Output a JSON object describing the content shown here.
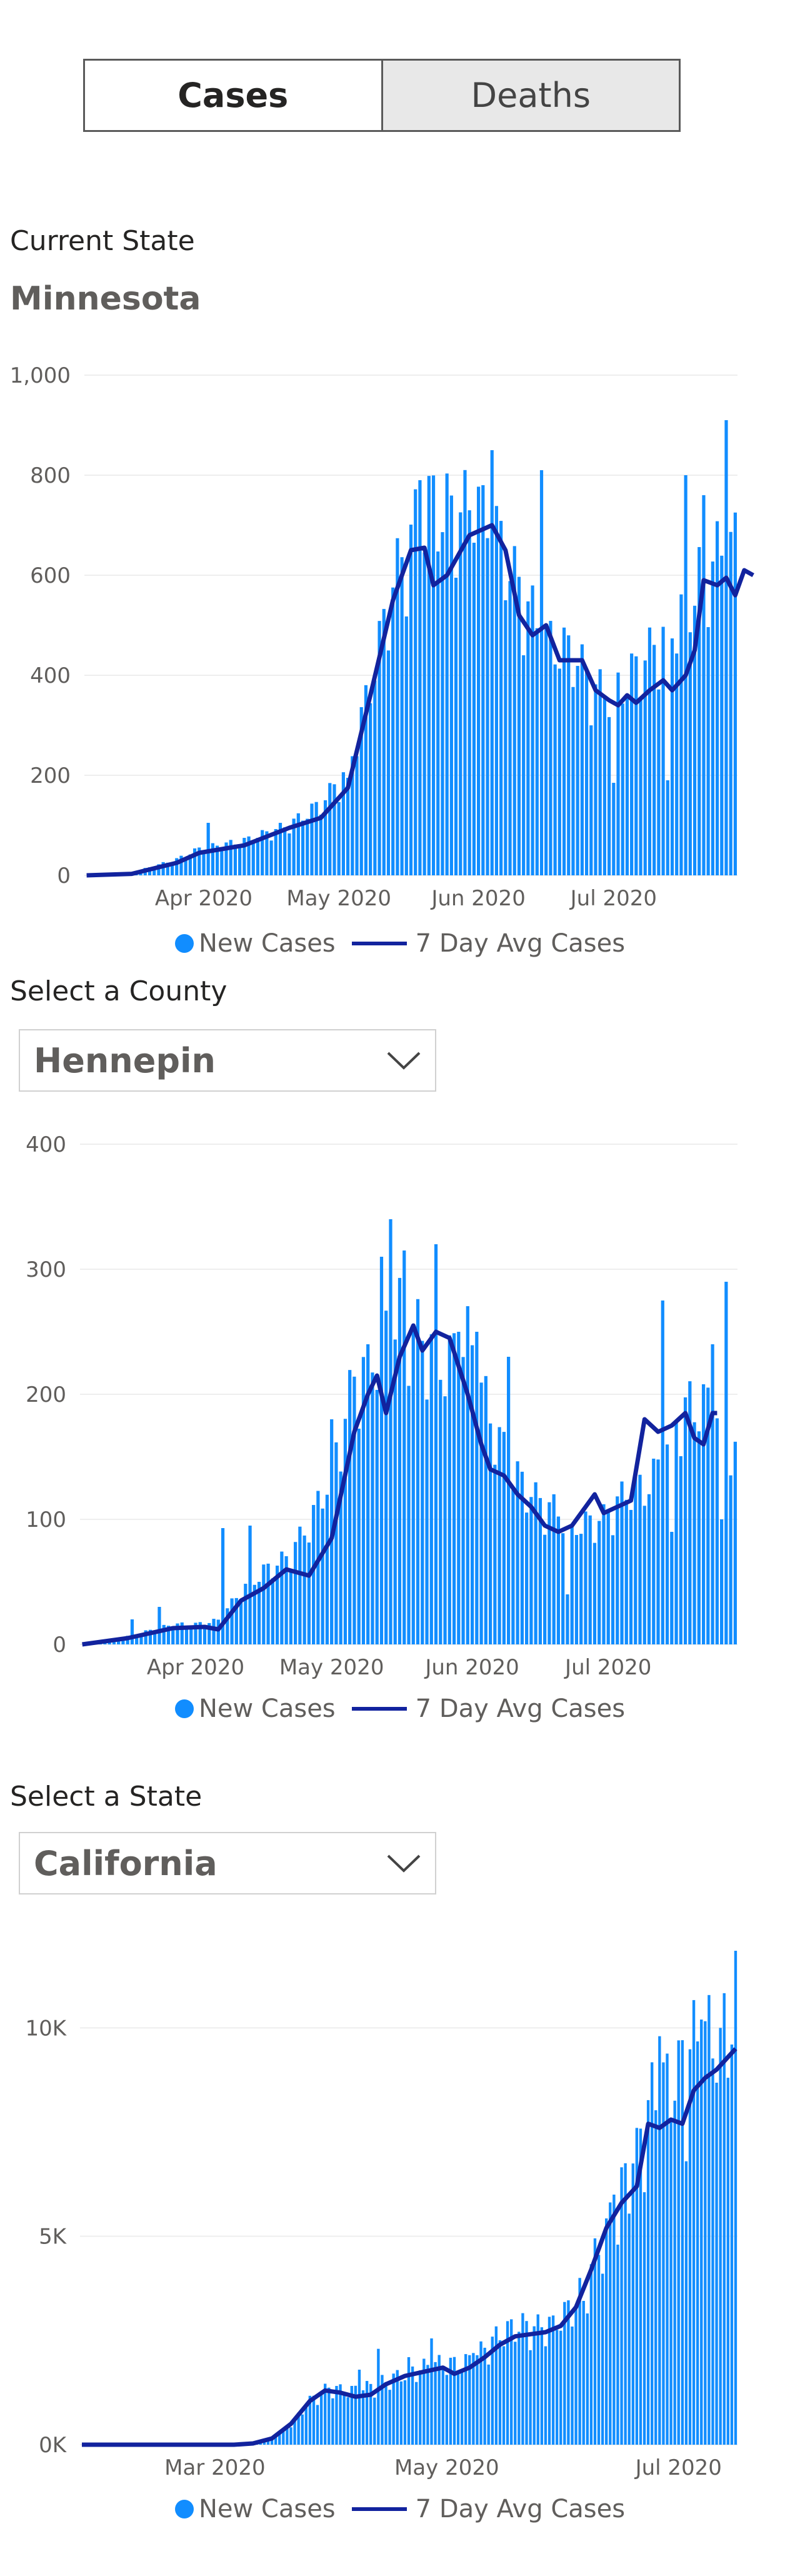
{
  "tabs": {
    "cases": "Cases",
    "deaths": "Deaths",
    "active": "cases"
  },
  "sections": {
    "current_state_label": "Current State",
    "current_state_value": "Minnesota",
    "county_label": "Select a County",
    "county_value": "Hennepin",
    "state_label": "Select a State",
    "state_value": "California"
  },
  "legend": {
    "new_cases": "New Cases",
    "avg": "7 Day Avg Cases"
  },
  "colors": {
    "bar": "#118dff",
    "avg_line": "#12239e",
    "grid": "#eeeeee"
  },
  "icons": {
    "dropdown": "chevron-down-icon"
  },
  "chart_data": [
    {
      "type": "bar",
      "region": "Minnesota",
      "ylim": [
        0,
        1000
      ],
      "y_ticks": [
        {
          "value": 0,
          "label": "0"
        },
        {
          "value": 200,
          "label": "200"
        },
        {
          "value": 400,
          "label": "400"
        },
        {
          "value": 600,
          "label": "600"
        },
        {
          "value": 800,
          "label": "800"
        },
        {
          "value": 1000,
          "label": "1,000"
        }
      ],
      "x_ticks": [
        "Apr 2020",
        "May 2020",
        "Jun 2020",
        "Jul 2020"
      ],
      "start_date": "2020-03-06",
      "tick_dates": [
        "2020-04-01",
        "2020-05-01",
        "2020-06-01",
        "2020-07-01"
      ],
      "series": [
        {
          "name": "New Cases",
          "kind": "bar",
          "anchors": [
            [
              0,
              0
            ],
            [
              10,
              5
            ],
            [
              20,
              30
            ],
            [
              25,
              50
            ],
            [
              35,
              65
            ],
            [
              45,
              95
            ],
            [
              52,
              135
            ],
            [
              58,
              200
            ],
            [
              63,
              360
            ],
            [
              68,
              550
            ],
            [
              75,
              700
            ],
            [
              82,
              680
            ],
            [
              88,
              700
            ],
            [
              95,
              560
            ],
            [
              102,
              440
            ],
            [
              108,
              420
            ],
            [
              113,
              350
            ],
            [
              118,
              350
            ],
            [
              123,
              400
            ],
            [
              128,
              450
            ],
            [
              133,
              500
            ],
            [
              136,
              560
            ],
            [
              140,
              600
            ],
            [
              144,
              620
            ]
          ],
          "spikes": {
            "27": 105,
            "58": 195,
            "74": 790,
            "82": 595,
            "86": 665,
            "88": 780,
            "90": 850,
            "101": 810,
            "117": 185,
            "133": 800,
            "137": 760,
            "142": 910
          },
          "dips": {
            "129": 190,
            "145": 350
          }
        },
        {
          "name": "7 Day Avg Cases",
          "kind": "line",
          "points": [
            [
              0,
              0
            ],
            [
              10,
              3
            ],
            [
              20,
              25
            ],
            [
              25,
              45
            ],
            [
              35,
              60
            ],
            [
              45,
              95
            ],
            [
              52,
              115
            ],
            [
              58,
              175
            ],
            [
              63,
              360
            ],
            [
              68,
              550
            ],
            [
              72,
              650
            ],
            [
              75,
              655
            ],
            [
              77,
              580
            ],
            [
              80,
              600
            ],
            [
              85,
              680
            ],
            [
              90,
              700
            ],
            [
              93,
              650
            ],
            [
              96,
              520
            ],
            [
              99,
              480
            ],
            [
              102,
              500
            ],
            [
              105,
              430
            ],
            [
              110,
              430
            ],
            [
              113,
              370
            ],
            [
              116,
              350
            ],
            [
              118,
              340
            ],
            [
              120,
              360
            ],
            [
              122,
              345
            ],
            [
              125,
              370
            ],
            [
              128,
              390
            ],
            [
              130,
              370
            ],
            [
              133,
              400
            ],
            [
              135,
              450
            ],
            [
              137,
              590
            ],
            [
              140,
              580
            ],
            [
              142,
              595
            ],
            [
              144,
              560
            ],
            [
              146,
              610
            ],
            [
              148,
              600
            ]
          ]
        }
      ]
    },
    {
      "type": "bar",
      "region": "Hennepin",
      "ylim": [
        0,
        400
      ],
      "y_ticks": [
        {
          "value": 0,
          "label": "0"
        },
        {
          "value": 100,
          "label": "100"
        },
        {
          "value": 200,
          "label": "200"
        },
        {
          "value": 300,
          "label": "300"
        },
        {
          "value": 400,
          "label": "400"
        }
      ],
      "x_ticks": [
        "Apr 2020",
        "May 2020",
        "Jun 2020",
        "Jul 2020"
      ],
      "start_date": "2020-03-07",
      "tick_dates": [
        "2020-04-01",
        "2020-05-01",
        "2020-06-01",
        "2020-07-01"
      ],
      "series": [
        {
          "name": "New Cases",
          "kind": "bar",
          "anchors": [
            [
              0,
              0
            ],
            [
              10,
              6
            ],
            [
              20,
              15
            ],
            [
              25,
              15
            ],
            [
              30,
              18
            ],
            [
              35,
              40
            ],
            [
              40,
              55
            ],
            [
              45,
              65
            ],
            [
              50,
              90
            ],
            [
              55,
              130
            ],
            [
              60,
              200
            ],
            [
              65,
              220
            ],
            [
              70,
              250
            ],
            [
              75,
              230
            ],
            [
              80,
              210
            ],
            [
              85,
              230
            ],
            [
              90,
              170
            ],
            [
              95,
              130
            ],
            [
              100,
              110
            ],
            [
              105,
              100
            ],
            [
              110,
              90
            ],
            [
              115,
              95
            ],
            [
              120,
              115
            ],
            [
              125,
              120
            ],
            [
              128,
              140
            ],
            [
              131,
              170
            ],
            [
              134,
              180
            ],
            [
              138,
              180
            ],
            [
              142,
              175
            ],
            [
              144,
              150
            ]
          ],
          "spikes": {
            "11": 20,
            "17": 30,
            "31": 93,
            "37": 95,
            "55": 180,
            "63": 240,
            "66": 310,
            "68": 340,
            "71": 315,
            "78": 320,
            "83": 250,
            "87": 250,
            "94": 230,
            "108": 95,
            "128": 275,
            "139": 240,
            "142": 290
          },
          "dips": {
            "107": 40,
            "130": 90,
            "141": 100
          }
        },
        {
          "name": "7 Day Avg Cases",
          "kind": "line",
          "points": [
            [
              0,
              0
            ],
            [
              10,
              5
            ],
            [
              20,
              13
            ],
            [
              27,
              14
            ],
            [
              30,
              12
            ],
            [
              35,
              35
            ],
            [
              40,
              45
            ],
            [
              45,
              60
            ],
            [
              50,
              55
            ],
            [
              55,
              85
            ],
            [
              60,
              170
            ],
            [
              63,
              200
            ],
            [
              65,
              215
            ],
            [
              67,
              185
            ],
            [
              70,
              230
            ],
            [
              73,
              255
            ],
            [
              75,
              235
            ],
            [
              78,
              250
            ],
            [
              81,
              245
            ],
            [
              85,
              200
            ],
            [
              88,
              160
            ],
            [
              90,
              140
            ],
            [
              93,
              135
            ],
            [
              96,
              120
            ],
            [
              99,
              110
            ],
            [
              102,
              95
            ],
            [
              105,
              90
            ],
            [
              108,
              95
            ],
            [
              111,
              110
            ],
            [
              113,
              120
            ],
            [
              115,
              105
            ],
            [
              118,
              110
            ],
            [
              121,
              115
            ],
            [
              124,
              180
            ],
            [
              127,
              170
            ],
            [
              130,
              175
            ],
            [
              133,
              185
            ],
            [
              135,
              165
            ],
            [
              137,
              160
            ],
            [
              139,
              185
            ],
            [
              140,
              185
            ]
          ]
        }
      ]
    },
    {
      "type": "bar",
      "region": "California",
      "ylim": [
        0,
        12000
      ],
      "y_ticks": [
        {
          "value": 0,
          "label": "0K"
        },
        {
          "value": 5000,
          "label": "5K"
        },
        {
          "value": 10000,
          "label": "10K"
        }
      ],
      "x_ticks": [
        "Mar 2020",
        "May 2020",
        "Jul 2020"
      ],
      "start_date": "2020-01-26",
      "tick_dates": [
        "2020-03-01",
        "2020-05-01",
        "2020-07-01"
      ],
      "series": [
        {
          "name": "New Cases",
          "kind": "bar",
          "anchors": [
            [
              0,
              0
            ],
            [
              40,
              0
            ],
            [
              45,
              30
            ],
            [
              50,
              150
            ],
            [
              55,
              450
            ],
            [
              60,
              1000
            ],
            [
              65,
              1300
            ],
            [
              70,
              1200
            ],
            [
              75,
              1300
            ],
            [
              80,
              1450
            ],
            [
              85,
              1600
            ],
            [
              90,
              1750
            ],
            [
              95,
              1850
            ],
            [
              100,
              1800
            ],
            [
              105,
              2100
            ],
            [
              110,
              2500
            ],
            [
              115,
              2700
            ],
            [
              120,
              2650
            ],
            [
              125,
              2800
            ],
            [
              130,
              3200
            ],
            [
              135,
              4200
            ],
            [
              140,
              5200
            ],
            [
              145,
              6500
            ],
            [
              150,
              7800
            ],
            [
              155,
              8200
            ],
            [
              160,
              9000
            ],
            [
              165,
              9200
            ],
            [
              170,
              9500
            ],
            [
              172,
              9600
            ]
          ],
          "spikes": {
            "73": 1800,
            "78": 2300,
            "86": 2100,
            "92": 2550,
            "103": 2200,
            "124": 3100,
            "132": 3450,
            "140": 6000,
            "146": 7600,
            "152": 9800,
            "157": 9700,
            "163": 10200,
            "168": 10000,
            "172": 11850
          },
          "dips": {
            "141": 4800,
            "159": 6800
          }
        },
        {
          "name": "7 Day Avg Cases",
          "kind": "line",
          "points": [
            [
              0,
              0
            ],
            [
              40,
              0
            ],
            [
              45,
              30
            ],
            [
              50,
              150
            ],
            [
              55,
              500
            ],
            [
              60,
              1050
            ],
            [
              64,
              1300
            ],
            [
              68,
              1250
            ],
            [
              72,
              1150
            ],
            [
              76,
              1200
            ],
            [
              80,
              1450
            ],
            [
              85,
              1650
            ],
            [
              90,
              1750
            ],
            [
              95,
              1850
            ],
            [
              98,
              1700
            ],
            [
              102,
              1850
            ],
            [
              106,
              2100
            ],
            [
              110,
              2400
            ],
            [
              114,
              2600
            ],
            [
              118,
              2650
            ],
            [
              122,
              2700
            ],
            [
              126,
              2850
            ],
            [
              130,
              3300
            ],
            [
              134,
              4200
            ],
            [
              138,
              5200
            ],
            [
              142,
              5800
            ],
            [
              146,
              6200
            ],
            [
              149,
              7700
            ],
            [
              152,
              7600
            ],
            [
              155,
              7800
            ],
            [
              158,
              7700
            ],
            [
              161,
              8500
            ],
            [
              164,
              8800
            ],
            [
              167,
              9000
            ],
            [
              170,
              9300
            ],
            [
              172,
              9500
            ]
          ]
        }
      ]
    }
  ]
}
